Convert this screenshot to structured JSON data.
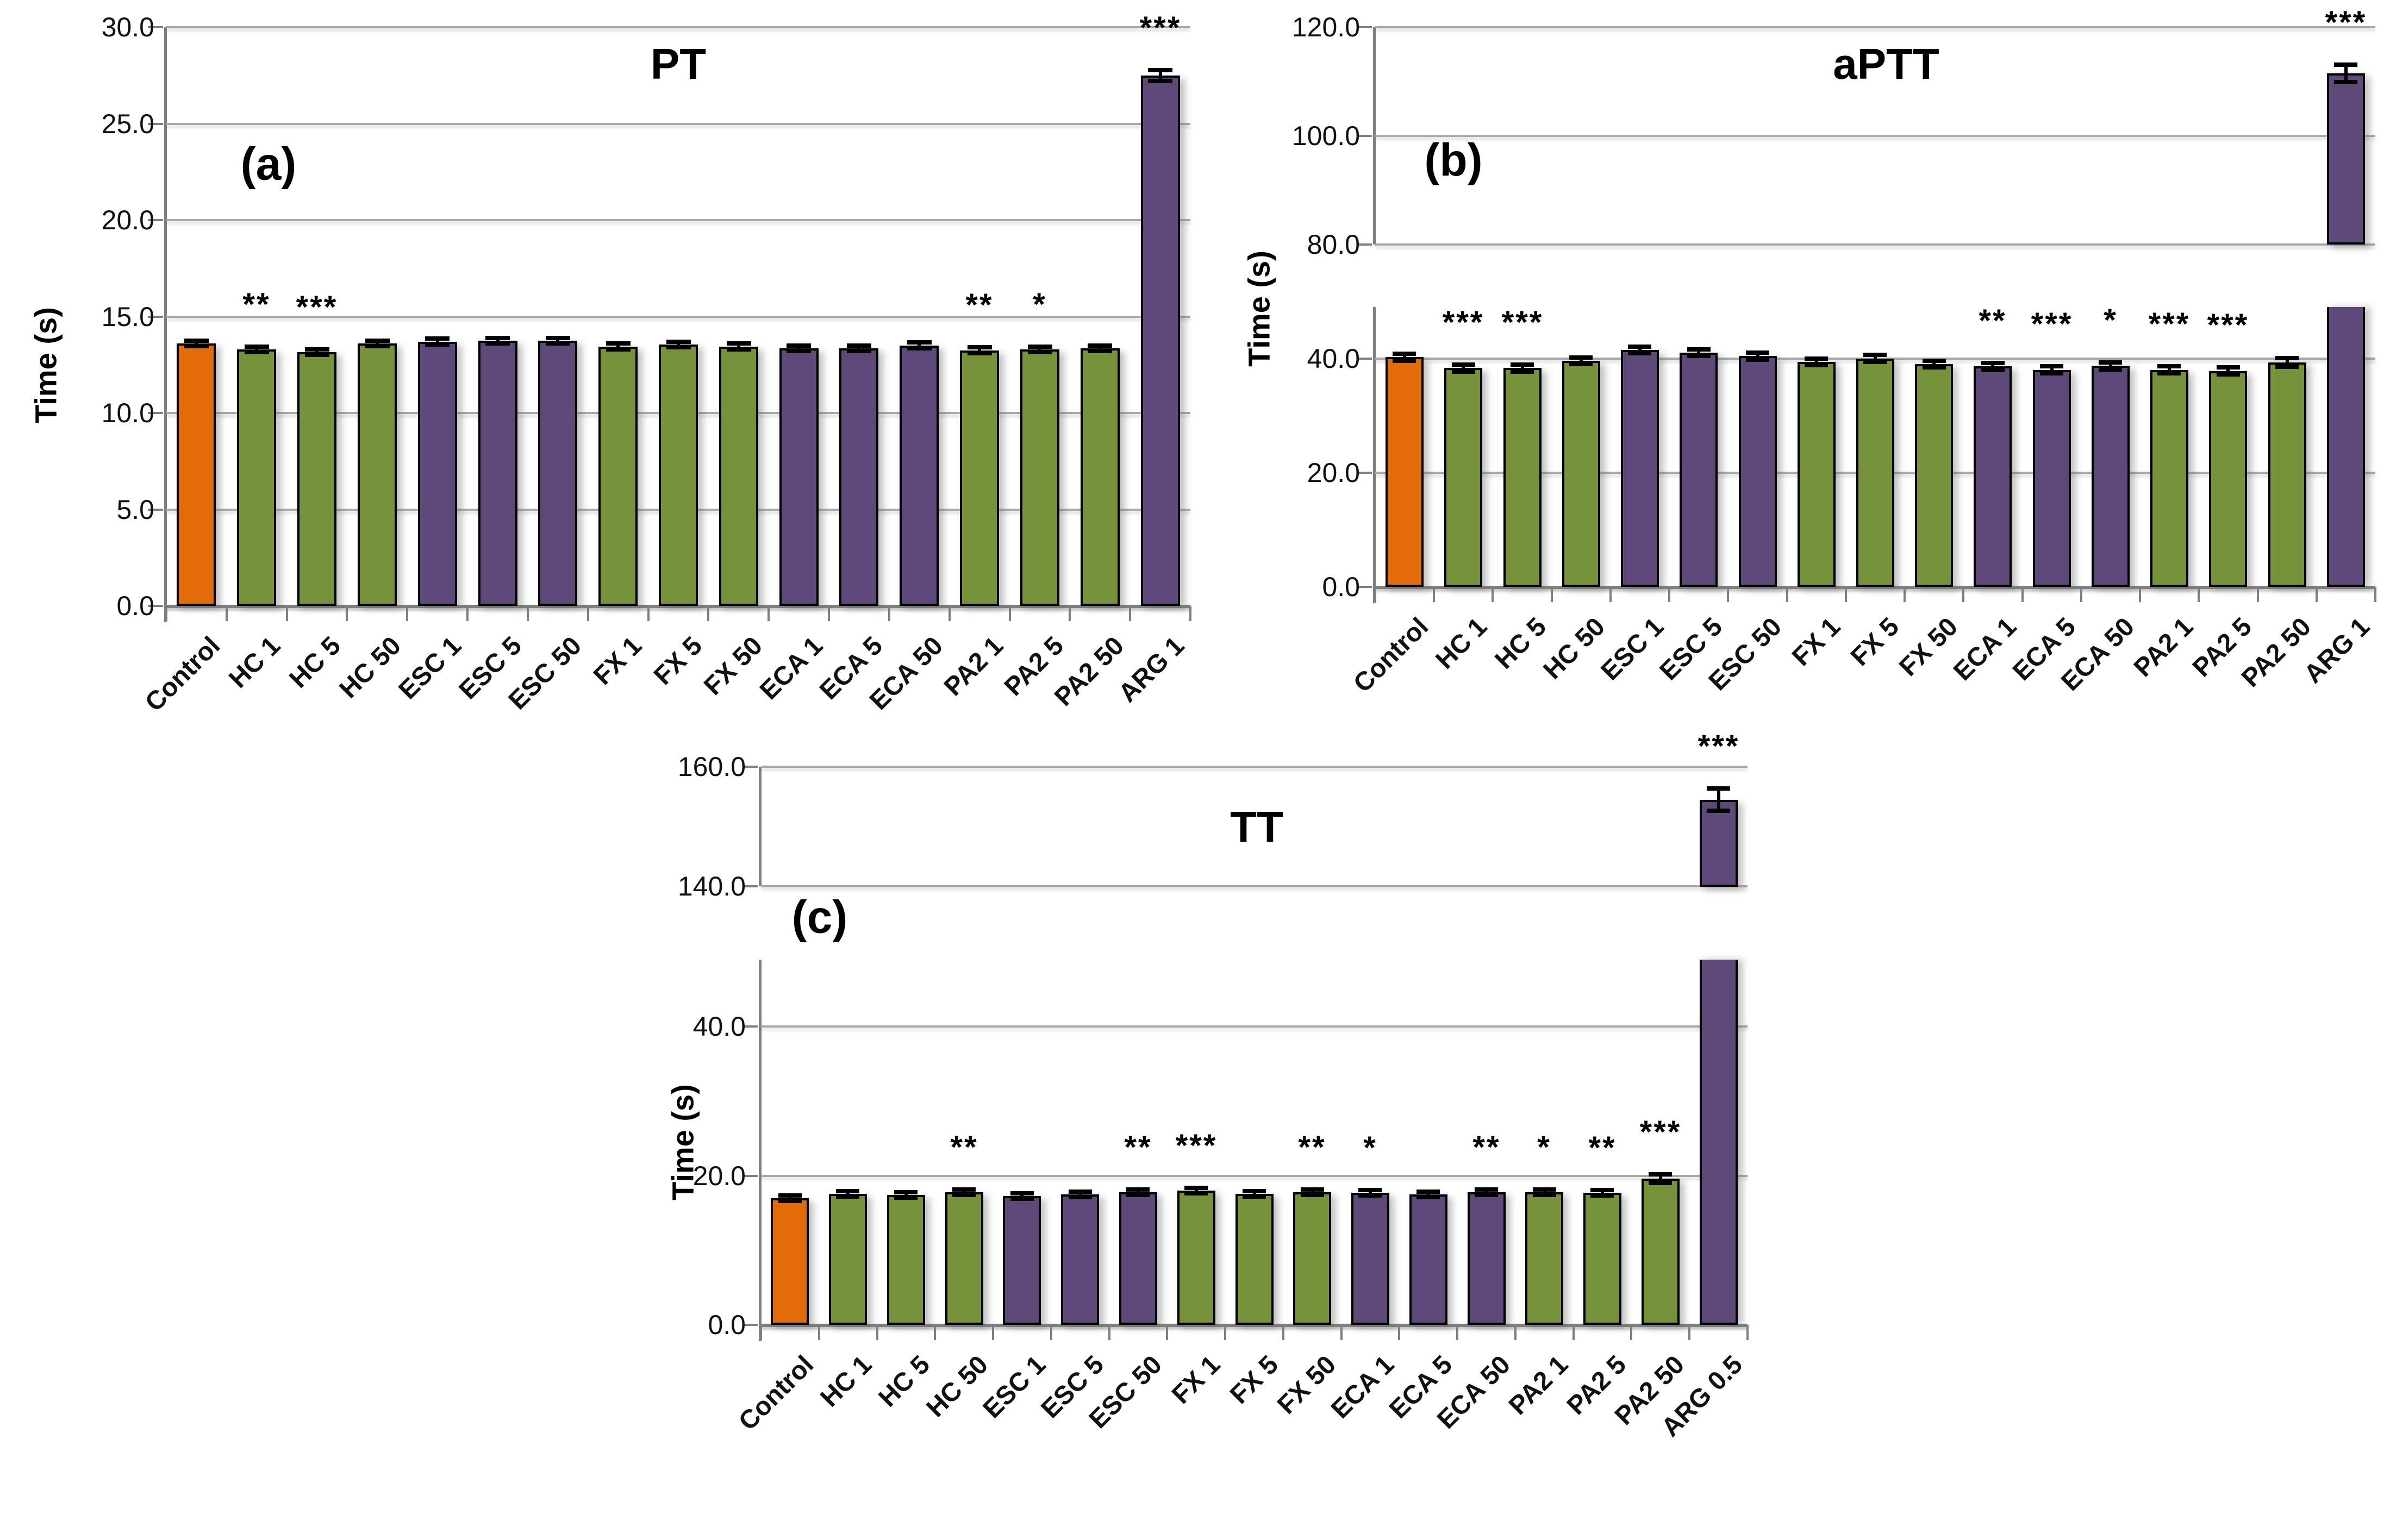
{
  "figure_background": "#ffffff",
  "palette": {
    "control": "#E36C0A",
    "green": "#76933C",
    "purple": "#5F497A",
    "gridline": "#A8A8A8",
    "axis": "#7F7F7F",
    "error_bar": "#000000"
  },
  "chart_data": [
    {
      "id": "a",
      "type": "bar",
      "panel_label": "(a)",
      "title": "PT",
      "ylabel": "Time (s)",
      "broken_axis": false,
      "ylim": [
        0,
        30
      ],
      "yticks": [
        30,
        25,
        20,
        15,
        10,
        5,
        0
      ],
      "grid": true,
      "legend": "none",
      "categories": [
        "Control",
        "HC 1",
        "HC 5",
        "HC 50",
        "ESC 1",
        "ESC 5",
        "ESC 50",
        "FX 1",
        "FX 5",
        "FX 50",
        "ECA 1",
        "ECA 5",
        "ECA 50",
        "PA2 1",
        "PA2 5",
        "PA2 50",
        "ARG 1"
      ],
      "values": [
        13.6,
        13.3,
        13.15,
        13.6,
        13.7,
        13.75,
        13.75,
        13.45,
        13.55,
        13.45,
        13.35,
        13.35,
        13.5,
        13.25,
        13.3,
        13.35,
        27.5
      ],
      "errors": [
        0.12,
        0.12,
        0.12,
        0.12,
        0.12,
        0.12,
        0.12,
        0.12,
        0.12,
        0.12,
        0.12,
        0.12,
        0.12,
        0.12,
        0.12,
        0.12,
        0.25
      ],
      "significance": [
        "",
        "**",
        "***",
        "",
        "",
        "",
        "",
        "",
        "",
        "",
        "",
        "",
        "",
        "**",
        "*",
        "",
        "***"
      ],
      "colors": [
        "control",
        "green",
        "green",
        "green",
        "purple",
        "purple",
        "purple",
        "green",
        "green",
        "green",
        "purple",
        "purple",
        "purple",
        "green",
        "green",
        "green",
        "purple"
      ]
    },
    {
      "id": "b",
      "type": "bar",
      "panel_label": "(b)",
      "title": "aPTT",
      "ylabel": "Time (s)",
      "broken_axis": true,
      "upper_ylim": [
        80,
        120
      ],
      "upper_yticks": [
        120,
        100,
        80
      ],
      "lower_ylim": [
        0,
        49
      ],
      "lower_yticks": [
        40,
        20,
        0
      ],
      "grid": true,
      "legend": "none",
      "categories": [
        "Control",
        "HC 1",
        "HC 5",
        "HC 50",
        "ESC 1",
        "ESC 5",
        "ESC 50",
        "FX 1",
        "FX 5",
        "FX 50",
        "ECA 1",
        "ECA 5",
        "ECA 50",
        "PA2 1",
        "PA2 5",
        "PA2 50",
        "ARG 1"
      ],
      "values": [
        40.2,
        38.3,
        38.3,
        39.6,
        41.5,
        41.0,
        40.4,
        39.4,
        40.0,
        39.0,
        38.6,
        38.0,
        38.7,
        38.0,
        37.8,
        39.3,
        111.5
      ],
      "errors": [
        0.5,
        0.5,
        0.5,
        0.5,
        0.5,
        0.5,
        0.5,
        0.5,
        0.5,
        0.5,
        0.5,
        0.5,
        0.5,
        0.5,
        0.5,
        0.7,
        1.5
      ],
      "significance": [
        "",
        "***",
        "***",
        "",
        "",
        "",
        "",
        "",
        "",
        "",
        "**",
        "***",
        "*",
        "***",
        "***",
        "",
        "***"
      ],
      "colors": [
        "control",
        "green",
        "green",
        "green",
        "purple",
        "purple",
        "purple",
        "green",
        "green",
        "green",
        "purple",
        "purple",
        "purple",
        "green",
        "green",
        "green",
        "purple"
      ]
    },
    {
      "id": "c",
      "type": "bar",
      "panel_label": "(c)",
      "title": "TT",
      "ylabel": "Time (s)",
      "broken_axis": true,
      "upper_ylim": [
        140,
        160
      ],
      "upper_yticks": [
        160,
        140
      ],
      "lower_ylim": [
        0,
        49
      ],
      "lower_yticks": [
        40,
        20,
        0
      ],
      "grid": true,
      "legend": "none",
      "categories": [
        "Control",
        "HC 1",
        "HC 5",
        "HC 50",
        "ESC 1",
        "ESC 5",
        "ESC 50",
        "FX 1",
        "FX 5",
        "FX 50",
        "ECA 1",
        "ECA 5",
        "ECA 50",
        "PA2 1",
        "PA2 5",
        "PA2 50",
        "ARG 0.5"
      ],
      "values": [
        17.0,
        17.6,
        17.4,
        17.8,
        17.3,
        17.5,
        17.8,
        18.0,
        17.6,
        17.8,
        17.7,
        17.5,
        17.8,
        17.8,
        17.7,
        19.6,
        154.5
      ],
      "errors": [
        0.3,
        0.3,
        0.3,
        0.3,
        0.3,
        0.3,
        0.3,
        0.3,
        0.3,
        0.3,
        0.3,
        0.3,
        0.3,
        0.3,
        0.3,
        0.5,
        1.8
      ],
      "significance": [
        "",
        "",
        "",
        "**",
        "",
        "",
        "**",
        "***",
        "",
        "**",
        "*",
        "",
        "**",
        "*",
        "**",
        "***",
        "***"
      ],
      "colors": [
        "control",
        "green",
        "green",
        "green",
        "purple",
        "purple",
        "purple",
        "green",
        "green",
        "green",
        "purple",
        "purple",
        "purple",
        "green",
        "green",
        "green",
        "purple"
      ]
    }
  ]
}
